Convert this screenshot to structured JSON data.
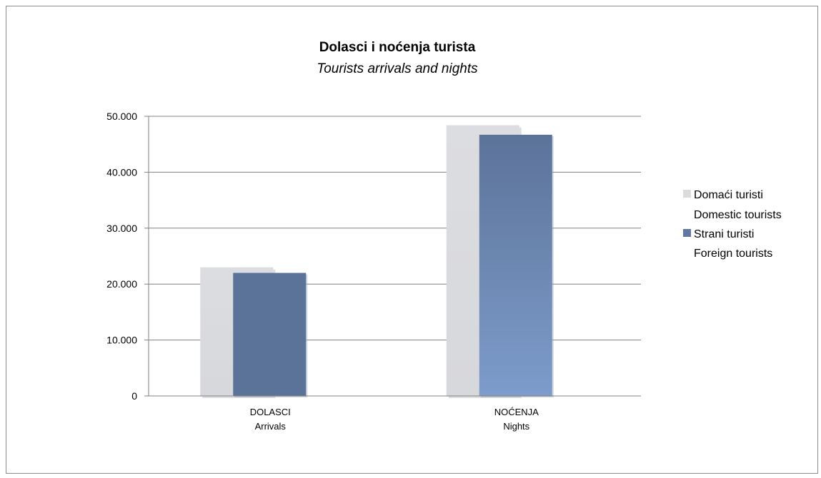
{
  "chart_data": {
    "type": "bar",
    "title": "Dolasci i noćenja turista",
    "subtitle": "Tourists arrivals and nights",
    "categories": [
      {
        "label": "DOLASCI",
        "sublabel": "Arrivals"
      },
      {
        "label": "NOĆENJA",
        "sublabel": "Nights"
      }
    ],
    "series": [
      {
        "name": "Domaći turisti",
        "name_en": "Domestic tourists",
        "color": "#dadbde",
        "values": [
          23000,
          48400
        ]
      },
      {
        "name": "Strani turisti",
        "name_en": "Foreign tourists",
        "color": "#5f77a0",
        "values": [
          22000,
          46700
        ]
      }
    ],
    "yticks": [
      "0",
      "10.000",
      "20.000",
      "30.000",
      "40.000",
      "50.000"
    ],
    "ylim": [
      0,
      50000
    ],
    "grid": true,
    "legend_position": "right"
  }
}
